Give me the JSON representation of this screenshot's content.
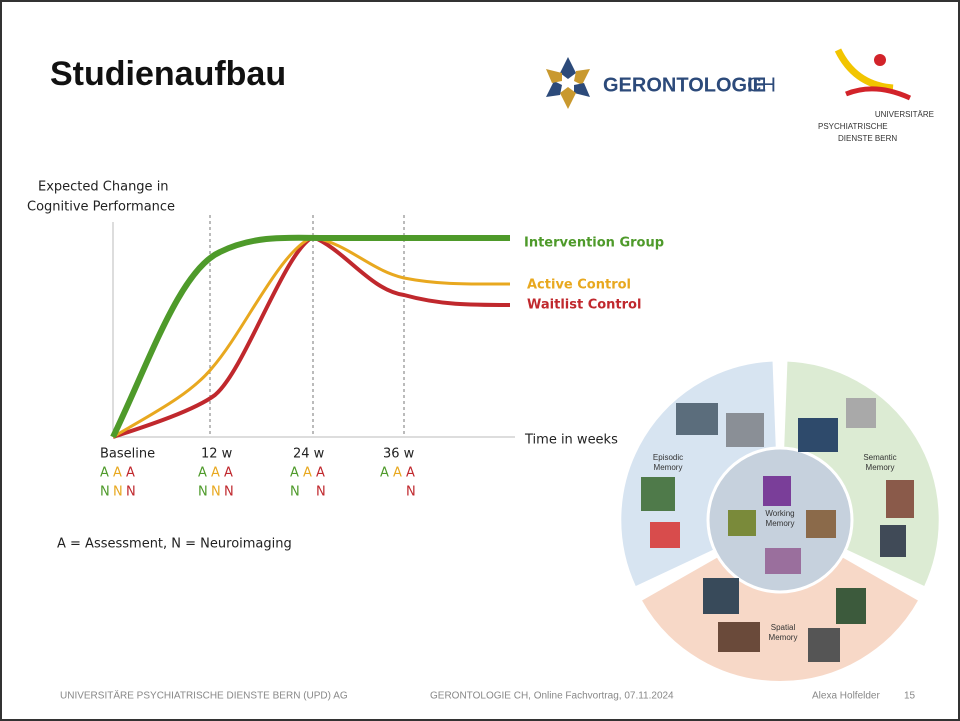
{
  "header": {
    "title": "Studienaufbau",
    "logo_gerontologie": {
      "bold": "GERONTOLOGIE",
      "light": "CH"
    },
    "logo_upd": [
      "UNIVERSITÄRE",
      "PSYCHIATRISCHE",
      "DIENSTE BERN"
    ]
  },
  "diagram": {
    "y_label": [
      "Expected Change in",
      "Cognitive Performance"
    ],
    "x_label": "Time in weeks",
    "groups": [
      {
        "name": "Intervention Group",
        "color": "#4e9a2a"
      },
      {
        "name": "Active Control",
        "color": "#e8a81f"
      },
      {
        "name": "Waitlist Control",
        "color": "#c0282d"
      }
    ],
    "timepoints": [
      {
        "label": "Baseline",
        "A": [
          "A",
          "A",
          "A"
        ],
        "N": [
          "N",
          "N",
          "N"
        ]
      },
      {
        "label": "12 w",
        "A": [
          "A",
          "A",
          "A"
        ],
        "N": [
          "N",
          "N",
          "N"
        ]
      },
      {
        "label": "24 w",
        "A": [
          "A",
          "A",
          "A"
        ],
        "N": [
          "N",
          null,
          "N"
        ]
      },
      {
        "label": "36 w",
        "A": [
          "A",
          "A",
          "A"
        ],
        "N": [
          null,
          null,
          "N"
        ]
      }
    ],
    "note": "A = Assessment, N = Neuroimaging"
  },
  "memory_figure": {
    "episodic": [
      "Episodic",
      "Memory"
    ],
    "semantic": [
      "Semantic",
      "Memory"
    ],
    "working": [
      "Working",
      "Memory"
    ],
    "spatial": [
      "Spatial",
      "Memory"
    ]
  },
  "footer": {
    "left": "UNIVERSITÄRE PSYCHIATRISCHE DIENSTE BERN (UPD) AG",
    "center": "GERONTOLOGIE CH, Online Fachvortrag, 07.11.2024",
    "author": "Alexa Holfelder",
    "page": "15"
  }
}
